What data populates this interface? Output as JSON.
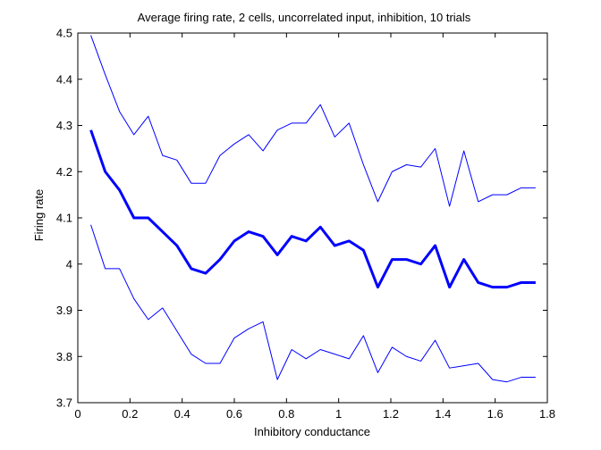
{
  "chart_data": {
    "type": "line",
    "title": "Average firing rate, 2 cells, uncorrelated input, inhibition, 10 trials",
    "xlabel": "Inhibitory conductance",
    "ylabel": "Firing rate",
    "xlim": [
      0,
      1.8
    ],
    "ylim": [
      3.7,
      4.5
    ],
    "xticks": [
      "0",
      "0.2",
      "0.4",
      "0.6",
      "0.8",
      "1",
      "1.2",
      "1.4",
      "1.6",
      "1.8"
    ],
    "yticks": [
      "3.7",
      "3.8",
      "3.9",
      "4",
      "4.1",
      "4.2",
      "4.3",
      "4.4",
      "4.5"
    ],
    "grid": false,
    "color": "#0000ff",
    "x": [
      0.05,
      0.105,
      0.16,
      0.215,
      0.27,
      0.325,
      0.38,
      0.435,
      0.49,
      0.545,
      0.6,
      0.655,
      0.71,
      0.765,
      0.82,
      0.875,
      0.93,
      0.985,
      1.04,
      1.095,
      1.15,
      1.205,
      1.26,
      1.315,
      1.37,
      1.425,
      1.48,
      1.535,
      1.59,
      1.645,
      1.7,
      1.755
    ],
    "series": [
      {
        "name": "",
        "line_width": 1,
        "values": [
          4.495,
          4.41,
          4.33,
          4.28,
          4.32,
          4.235,
          4.225,
          4.175,
          4.175,
          4.235,
          4.26,
          4.28,
          4.245,
          4.29,
          4.305,
          4.305,
          4.345,
          4.275,
          4.305,
          4.215,
          4.135,
          4.2,
          4.215,
          4.21,
          4.25,
          4.125,
          4.245,
          4.135,
          4.15,
          4.15,
          4.165,
          4.165
        ]
      },
      {
        "name": "",
        "line_width": 3,
        "values": [
          4.29,
          4.2,
          4.16,
          4.1,
          4.1,
          4.07,
          4.04,
          3.99,
          3.98,
          4.01,
          4.05,
          4.07,
          4.06,
          4.02,
          4.06,
          4.05,
          4.08,
          4.04,
          4.05,
          4.03,
          3.95,
          4.01,
          4.01,
          4.0,
          4.04,
          3.95,
          4.01,
          3.96,
          3.95,
          3.95,
          3.96,
          3.96
        ]
      },
      {
        "name": "",
        "line_width": 1,
        "values": [
          4.085,
          3.99,
          3.99,
          3.925,
          3.88,
          3.905,
          3.855,
          3.805,
          3.785,
          3.785,
          3.84,
          3.86,
          3.875,
          3.75,
          3.815,
          3.795,
          3.815,
          3.805,
          3.795,
          3.845,
          3.765,
          3.82,
          3.8,
          3.79,
          3.835,
          3.775,
          3.78,
          3.785,
          3.75,
          3.745,
          3.755,
          3.755
        ]
      }
    ]
  }
}
